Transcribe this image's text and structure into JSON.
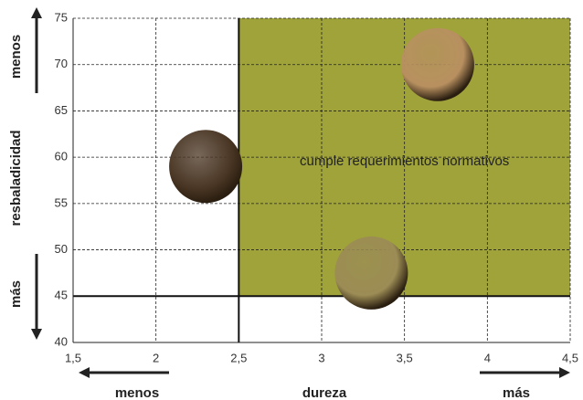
{
  "chart_data": {
    "type": "scatter",
    "x_label": "dureza",
    "y_label": "resbaladicidad",
    "x_low_label": "menos",
    "x_high_label": "más",
    "y_high_label": "menos",
    "y_low_label": "más",
    "xlim": [
      1.5,
      4.5
    ],
    "xticks": [
      {
        "value": 1.5,
        "label": "1,5"
      },
      2,
      {
        "value": 2.5,
        "label": "2,5"
      },
      3,
      {
        "value": 3.5,
        "label": "3,5"
      },
      4,
      {
        "value": 4.5,
        "label": "4,5"
      }
    ],
    "ylim": [
      40,
      75
    ],
    "yticks": [
      40,
      45,
      50,
      55,
      60,
      65,
      70,
      75
    ],
    "grid": true,
    "region": {
      "xlim": [
        2.5,
        4.5
      ],
      "ylim": [
        45,
        75
      ],
      "color": "#9fa33a",
      "label": "cumple requerimientos normativos"
    },
    "series": [
      {
        "x": [
          2.3,
          3.7,
          3.3
        ],
        "values": [
          59,
          70,
          47.5
        ],
        "colors": [
          "#4a3624",
          "#b89060",
          "#9c8c55"
        ]
      }
    ]
  }
}
